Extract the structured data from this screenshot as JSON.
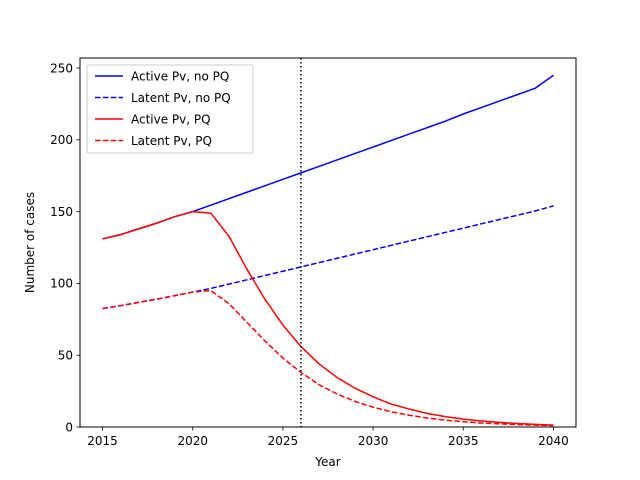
{
  "chart_data": {
    "type": "line",
    "title": "",
    "xlabel": "Year",
    "ylabel": "Number of cases",
    "xlim": [
      2013.75,
      2041.25
    ],
    "ylim": [
      0,
      257
    ],
    "x_ticks": [
      2015,
      2020,
      2025,
      2030,
      2035,
      2040
    ],
    "y_ticks": [
      0,
      50,
      100,
      150,
      200,
      250
    ],
    "grid": false,
    "legend_position": "top-left",
    "vertical_line": {
      "x": 2026,
      "style": "dotted",
      "color": "#000000"
    },
    "series": [
      {
        "name": "Active Pv, no PQ",
        "color": "#0000ff",
        "style": "solid",
        "x": [
          2015,
          2016,
          2017,
          2018,
          2019,
          2020,
          2021,
          2022,
          2023,
          2024,
          2025,
          2026,
          2027,
          2028,
          2029,
          2030,
          2031,
          2032,
          2033,
          2034,
          2035,
          2036,
          2037,
          2038,
          2039,
          2040
        ],
        "y": [
          131,
          134,
          138,
          142,
          146.5,
          150,
          154.5,
          159,
          163.5,
          168,
          172.5,
          177,
          181.5,
          186,
          190.5,
          195,
          199.5,
          204,
          208.5,
          213,
          218,
          222.5,
          227,
          231.5,
          236,
          245
        ]
      },
      {
        "name": "Latent Pv, no PQ",
        "color": "#0000ff",
        "style": "dashed",
        "x": [
          2015,
          2016,
          2017,
          2018,
          2019,
          2020,
          2021,
          2022,
          2023,
          2024,
          2025,
          2026,
          2027,
          2028,
          2029,
          2030,
          2031,
          2032,
          2033,
          2034,
          2035,
          2036,
          2037,
          2038,
          2039,
          2040
        ],
        "y": [
          82.5,
          84.5,
          86.8,
          89,
          91.5,
          94,
          96.5,
          99.5,
          102.5,
          105.5,
          108.5,
          111.5,
          114.5,
          117.5,
          120.5,
          123.5,
          126.5,
          129.5,
          132.5,
          135.5,
          138.5,
          141.5,
          144.5,
          147.5,
          150.5,
          154
        ]
      },
      {
        "name": "Active Pv, PQ",
        "color": "#ff0000",
        "style": "solid",
        "x": [
          2015,
          2016,
          2017,
          2018,
          2019,
          2020,
          2021,
          2022,
          2023,
          2024,
          2025,
          2026,
          2027,
          2028,
          2029,
          2030,
          2031,
          2032,
          2033,
          2034,
          2035,
          2036,
          2037,
          2038,
          2039,
          2040
        ],
        "y": [
          131,
          134,
          138,
          142,
          146.5,
          150,
          149,
          133,
          110,
          89,
          71,
          56,
          44,
          34.5,
          27,
          21,
          16,
          12.5,
          9.5,
          7.2,
          5.5,
          4.2,
          3.2,
          2.4,
          1.8,
          1.3
        ]
      },
      {
        "name": "Latent Pv, PQ",
        "color": "#ff0000",
        "style": "dashed",
        "x": [
          2015,
          2016,
          2017,
          2018,
          2019,
          2020,
          2021,
          2022,
          2023,
          2024,
          2025,
          2026,
          2027,
          2028,
          2029,
          2030,
          2031,
          2032,
          2033,
          2034,
          2035,
          2036,
          2037,
          2038,
          2039,
          2040
        ],
        "y": [
          82.5,
          84.5,
          86.8,
          89,
          91.5,
          94,
          95,
          86,
          73,
          60,
          48,
          38,
          29.5,
          23,
          17.8,
          13.8,
          10.6,
          8.2,
          6.3,
          4.8,
          3.7,
          2.8,
          2.2,
          1.7,
          1.3,
          1
        ]
      }
    ]
  }
}
